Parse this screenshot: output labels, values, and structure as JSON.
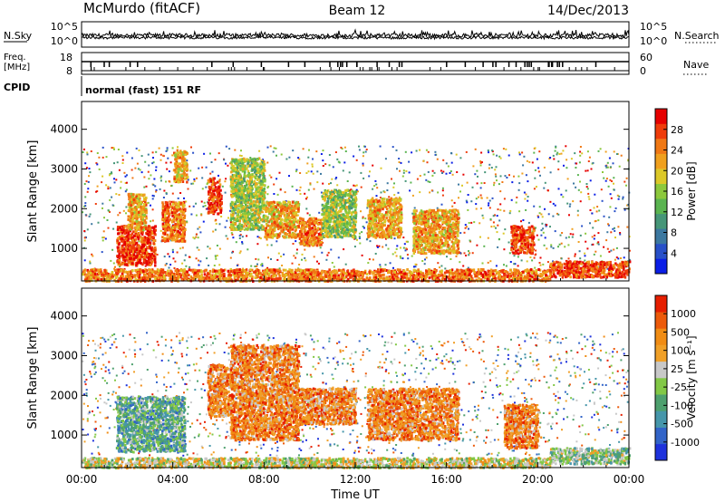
{
  "header": {
    "station": "McMurdo (fitACF)",
    "beam": "Beam 12",
    "date": "14/Dec/2013"
  },
  "noise_panel": {
    "left_label": "N.Sky",
    "right_label": "N.Search",
    "top_tick": "10^5",
    "bottom_tick": "10^0"
  },
  "freq_panel": {
    "left_label_1": "Freq.",
    "left_label_2": "[MHz]",
    "left_ticks": [
      "18",
      "8"
    ],
    "right_label": "Nave",
    "right_ticks": [
      "60",
      "0"
    ]
  },
  "cpid_panel": {
    "label": "CPID",
    "text": "normal (fast) 151 RF"
  },
  "colors": {
    "power": [
      "#0a1ee6",
      "#2850c8",
      "#3c78a0",
      "#469678",
      "#5ab450",
      "#8cc83c",
      "#dcc828",
      "#f0a01e",
      "#f07814",
      "#ef3c0a",
      "#e60000"
    ],
    "velocity": [
      "#1e32dc",
      "#3264c8",
      "#4696aa",
      "#4ea06e",
      "#82c846",
      "#c8c8c8",
      "#f0a028",
      "#f08c14",
      "#ec5a0a",
      "#e61e00"
    ]
  },
  "chart_data": [
    {
      "type": "heatmap",
      "name": "power-panel",
      "ylabel": "Slant Range [km]",
      "xlim": [
        "00:00",
        "24:00"
      ],
      "ylim": [
        180,
        4700
      ],
      "yticks": [
        1000,
        2000,
        3000,
        4000
      ],
      "colorbar": {
        "label": "Power [dB]",
        "range": [
          0,
          32
        ],
        "ticks": [
          "4",
          "8",
          "12",
          "16",
          "20",
          "24",
          "28"
        ]
      },
      "echo_regions": [
        {
          "t": [
            1.5,
            3.2
          ],
          "r": [
            600,
            1600
          ],
          "level": 9
        },
        {
          "t": [
            2.0,
            2.8
          ],
          "r": [
            1500,
            2400
          ],
          "level": 7
        },
        {
          "t": [
            3.5,
            4.5
          ],
          "r": [
            1200,
            2200
          ],
          "level": 8
        },
        {
          "t": [
            4.0,
            4.6
          ],
          "r": [
            2700,
            3500
          ],
          "level": 7
        },
        {
          "t": [
            5.5,
            6.1
          ],
          "r": [
            1900,
            2800
          ],
          "level": 9
        },
        {
          "t": [
            6.5,
            8.0
          ],
          "r": [
            1500,
            3300
          ],
          "level": 5
        },
        {
          "t": [
            8.0,
            9.5
          ],
          "r": [
            1300,
            2200
          ],
          "level": 7
        },
        {
          "t": [
            9.5,
            10.5
          ],
          "r": [
            1100,
            1800
          ],
          "level": 8
        },
        {
          "t": [
            10.5,
            12.0
          ],
          "r": [
            1300,
            2500
          ],
          "level": 5
        },
        {
          "t": [
            12.5,
            14.0
          ],
          "r": [
            1300,
            2300
          ],
          "level": 7
        },
        {
          "t": [
            14.5,
            16.5
          ],
          "r": [
            900,
            2000
          ],
          "level": 7
        },
        {
          "t": [
            18.8,
            19.8
          ],
          "r": [
            900,
            1600
          ],
          "level": 9
        },
        {
          "t": [
            20.5,
            24.0
          ],
          "r": [
            300,
            700
          ],
          "level": 9
        },
        {
          "t": [
            0.0,
            20.5
          ],
          "r": [
            200,
            500
          ],
          "level": 8
        }
      ]
    },
    {
      "type": "heatmap",
      "name": "velocity-panel",
      "xlabel": "Time UT",
      "ylabel": "Slant Range [km]",
      "xlim": [
        "00:00",
        "24:00"
      ],
      "xticks": [
        "00:00",
        "04:00",
        "08:00",
        "12:00",
        "16:00",
        "20:00",
        "00:00"
      ],
      "ylim": [
        180,
        4700
      ],
      "yticks": [
        1000,
        2000,
        3000,
        4000
      ],
      "colorbar": {
        "label": "Velocity [m s⁻¹]",
        "ticks": [
          "1000",
          "500",
          "100",
          "25",
          "-25",
          "-100",
          "-500",
          "-1000"
        ]
      },
      "echo_regions": [
        {
          "t": [
            1.5,
            4.5
          ],
          "r": [
            600,
            2000
          ],
          "level": 3
        },
        {
          "t": [
            5.5,
            6.5
          ],
          "r": [
            1500,
            2800
          ],
          "level": 7
        },
        {
          "t": [
            6.5,
            9.5
          ],
          "r": [
            900,
            3300
          ],
          "level": 7
        },
        {
          "t": [
            9.5,
            12.0
          ],
          "r": [
            1300,
            2200
          ],
          "level": 7
        },
        {
          "t": [
            12.5,
            16.5
          ],
          "r": [
            900,
            2200
          ],
          "level": 7
        },
        {
          "t": [
            18.5,
            20.0
          ],
          "r": [
            700,
            1800
          ],
          "level": 7
        },
        {
          "t": [
            20.5,
            24.0
          ],
          "r": [
            300,
            700
          ],
          "level": 4
        },
        {
          "t": [
            0.0,
            20.5
          ],
          "r": [
            200,
            450
          ],
          "level": 5
        }
      ]
    }
  ]
}
